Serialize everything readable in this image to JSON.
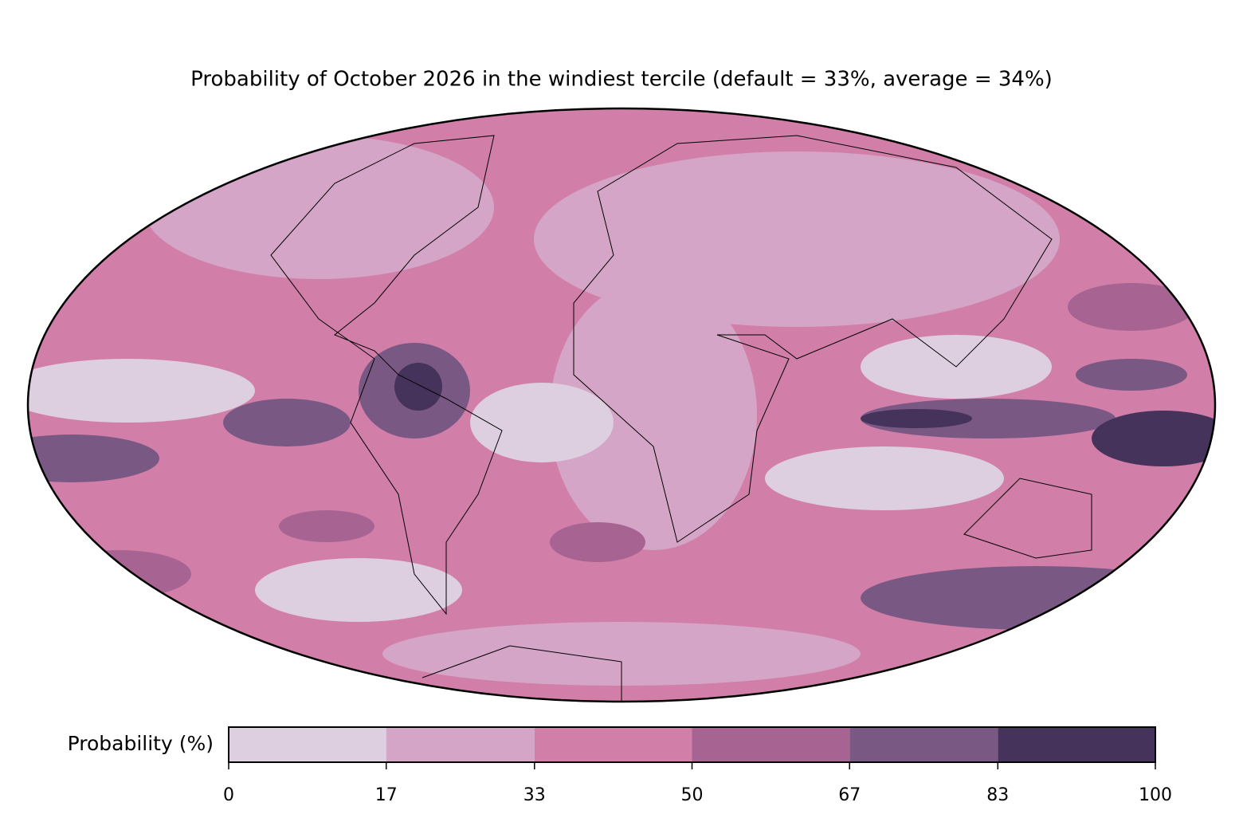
{
  "chart_data": {
    "type": "map",
    "title": "Probability of October 2026 in the windiest tercile (default = 33%, average = 34%)",
    "colorbar": {
      "label": "Probability (%)",
      "xlim": [
        0,
        100
      ],
      "ticks": [
        0,
        17,
        33,
        50,
        67,
        83,
        100
      ],
      "colors": [
        "#ddcfe0",
        "#d4a5c6",
        "#d17fa9",
        "#a76492",
        "#7a5884",
        "#45335c"
      ]
    }
  }
}
